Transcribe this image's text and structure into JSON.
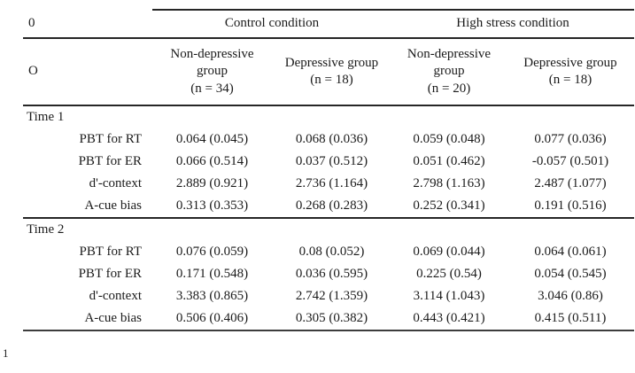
{
  "table": {
    "corner_row1": "0",
    "corner_row2": "O",
    "footnote": "1",
    "condition_groups": [
      {
        "label": "Control condition"
      },
      {
        "label": "High stress condition"
      }
    ],
    "columns": [
      {
        "lines": [
          "Non-depressive",
          "group",
          "(n = 34)"
        ]
      },
      {
        "lines": [
          "Depressive group",
          "(n = 18)"
        ]
      },
      {
        "lines": [
          "Non-depressive",
          "group",
          "(n = 20)"
        ]
      },
      {
        "lines": [
          "Depressive group",
          "(n = 18)"
        ]
      }
    ],
    "sections": [
      {
        "label": "Time 1",
        "rows": [
          {
            "label": "PBT for RT",
            "values": [
              "0.064 (0.045)",
              "0.068 (0.036)",
              "0.059 (0.048)",
              "0.077 (0.036)"
            ]
          },
          {
            "label": "PBT for ER",
            "values": [
              "0.066 (0.514)",
              "0.037 (0.512)",
              "0.051 (0.462)",
              "-0.057 (0.501)"
            ]
          },
          {
            "label": "d'-context",
            "values": [
              "2.889 (0.921)",
              "2.736 (1.164)",
              "2.798 (1.163)",
              "2.487 (1.077)"
            ]
          },
          {
            "label": "A-cue bias",
            "values": [
              "0.313 (0.353)",
              "0.268 (0.283)",
              "0.252 (0.341)",
              "0.191 (0.516)"
            ]
          }
        ]
      },
      {
        "label": "Time 2",
        "rows": [
          {
            "label": "PBT for RT",
            "values": [
              "0.076 (0.059)",
              "0.08 (0.052)",
              "0.069 (0.044)",
              "0.064 (0.061)"
            ]
          },
          {
            "label": "PBT for ER",
            "values": [
              "0.171 (0.548)",
              "0.036 (0.595)",
              "0.225 (0.54)",
              "0.054 (0.545)"
            ]
          },
          {
            "label": "d'-context",
            "values": [
              "3.383 (0.865)",
              "2.742 (1.359)",
              "3.114 (1.043)",
              "3.046 (0.86)"
            ]
          },
          {
            "label": "A-cue bias",
            "values": [
              "0.506 (0.406)",
              "0.305 (0.382)",
              "0.443 (0.421)",
              "0.415 (0.511)"
            ]
          }
        ]
      }
    ]
  }
}
